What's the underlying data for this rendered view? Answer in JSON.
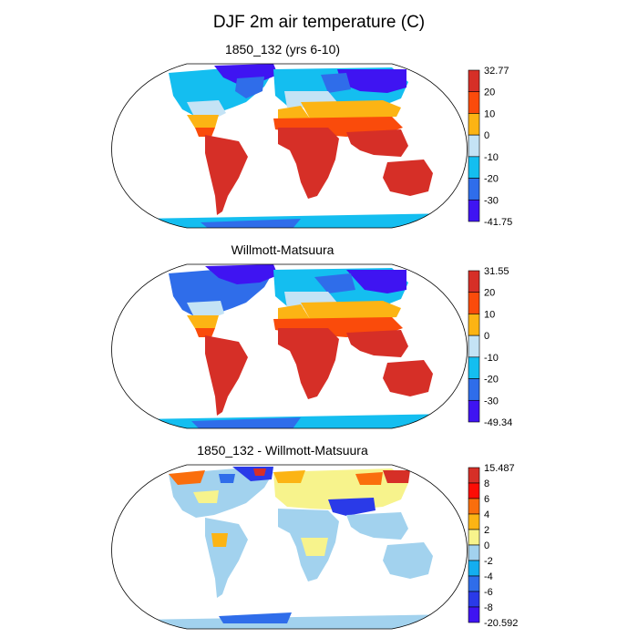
{
  "title": "DJF 2m air temperature (C)",
  "panels": [
    {
      "subtitle": "1850_132 (yrs 6-10)",
      "colorbar": {
        "labels": [
          "32.77",
          "20",
          "10",
          "0",
          "-10",
          "-20",
          "-30",
          "-41.75"
        ],
        "colors": [
          "#d62f27",
          "#fa4b0b",
          "#fcb414",
          "#c4e3f5",
          "#14bef0",
          "#2f6dea",
          "#3f14f2"
        ]
      }
    },
    {
      "subtitle": "Willmott-Matsuura",
      "colorbar": {
        "labels": [
          "31.55",
          "20",
          "10",
          "0",
          "-10",
          "-20",
          "-30",
          "-49.34"
        ],
        "colors": [
          "#d62f27",
          "#fa4b0b",
          "#fcb414",
          "#c4e3f5",
          "#14bef0",
          "#2f6dea",
          "#3f14f2"
        ]
      }
    },
    {
      "subtitle": "1850_132 - Willmott-Matsuura",
      "colorbar": {
        "labels": [
          "15.487",
          "8",
          "6",
          "4",
          "2",
          "0",
          "-2",
          "-4",
          "-6",
          "-8",
          "-20.592"
        ],
        "colors": [
          "#d62f27",
          "#fc0d05",
          "#fa6e0d",
          "#fcb414",
          "#f7f38c",
          "#a2d2ee",
          "#14aef0",
          "#2f6dea",
          "#2a3ae8",
          "#3f14f2"
        ]
      }
    }
  ]
}
